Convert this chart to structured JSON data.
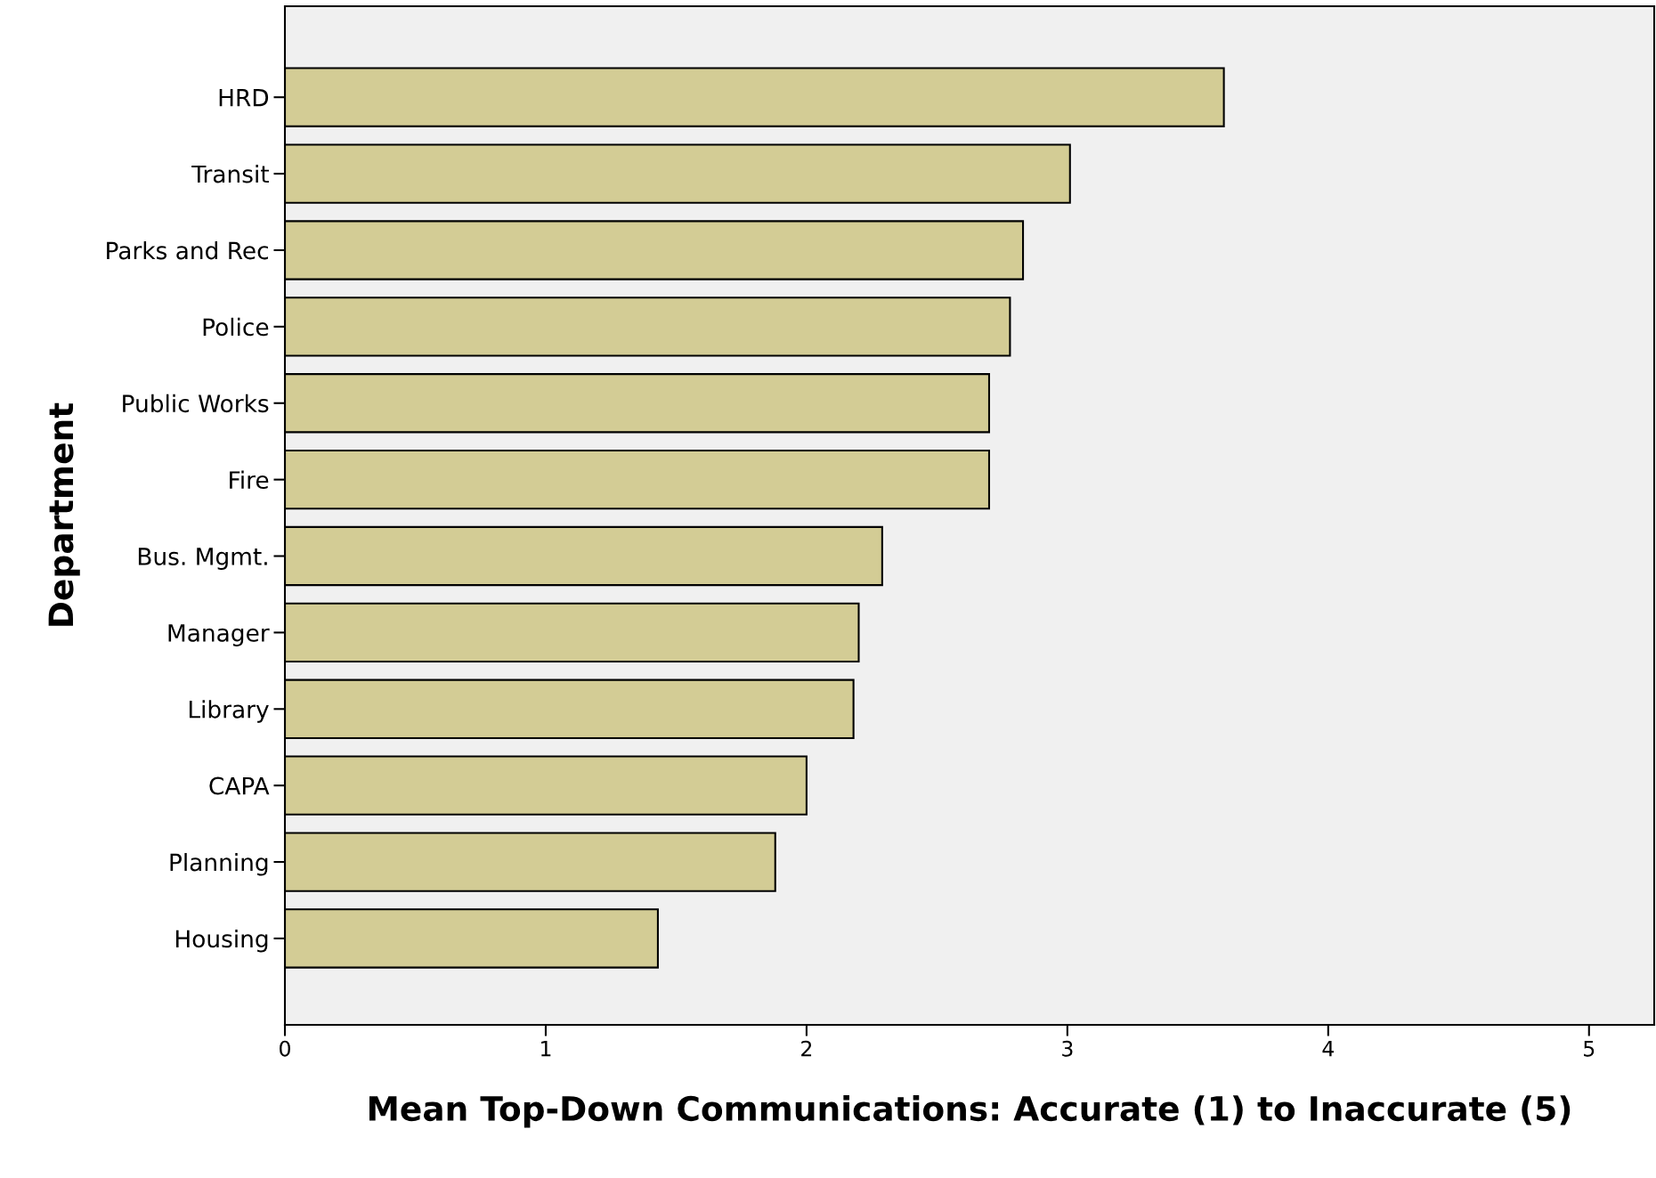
{
  "chart_data": {
    "type": "bar",
    "orientation": "horizontal",
    "xlabel": "Mean Top-Down Communications: Accurate (1) to Inaccurate (5)",
    "ylabel": "Department",
    "categories": [
      "HRD",
      "Transit",
      "Parks and Rec",
      "Police",
      "Public Works",
      "Fire",
      "Bus. Mgmt.",
      "Manager",
      "Library",
      "CAPA",
      "Planning",
      "Housing"
    ],
    "values": [
      3.6,
      3.01,
      2.83,
      2.78,
      2.7,
      2.7,
      2.29,
      2.2,
      2.18,
      2.0,
      1.88,
      1.43
    ],
    "color": "#d3cc95",
    "xlim": [
      0,
      5.25
    ],
    "xticks": [
      0,
      1,
      2,
      3,
      4,
      5
    ],
    "grid": false,
    "legend": false
  }
}
